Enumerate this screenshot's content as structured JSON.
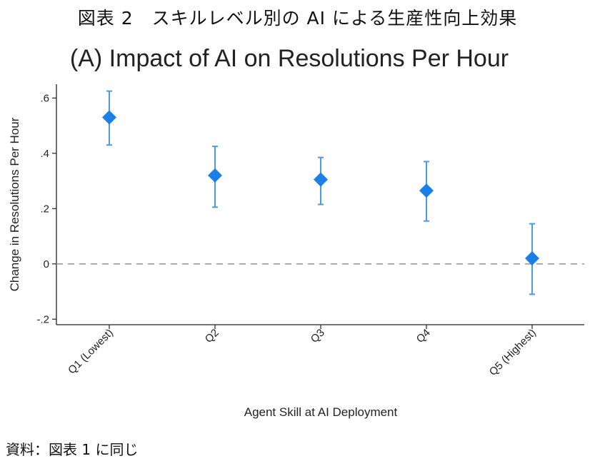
{
  "figure_caption": "図表 2　スキルレベル別の AI による生産性向上効果",
  "source_note": "資料：図表 1 に同じ",
  "colors": {
    "marker": "#1a7fe6",
    "errorbar": "#4a9be8",
    "zero_line": "#999999",
    "axis": "#222222"
  },
  "chart_data": {
    "type": "scatter",
    "title": "(A) Impact of AI on Resolutions Per Hour",
    "xlabel": "Agent Skill at AI Deployment",
    "ylabel": "Change in Resolutions Per Hour",
    "categories": [
      "Q1 (Lowest)",
      "Q2",
      "Q3",
      "Q4",
      "Q5 (Highest)"
    ],
    "values": [
      0.53,
      0.32,
      0.305,
      0.265,
      0.02
    ],
    "ci_low": [
      0.43,
      0.205,
      0.215,
      0.155,
      -0.11
    ],
    "ci_high": [
      0.625,
      0.425,
      0.385,
      0.37,
      0.145
    ],
    "yticks": [
      -0.2,
      0,
      0.2,
      0.4,
      0.6
    ],
    "ytick_labels": [
      "-.2",
      "0",
      ".2",
      ".4",
      ".6"
    ],
    "ylim": [
      -0.22,
      0.65
    ],
    "reference_line": 0,
    "grid": false
  }
}
